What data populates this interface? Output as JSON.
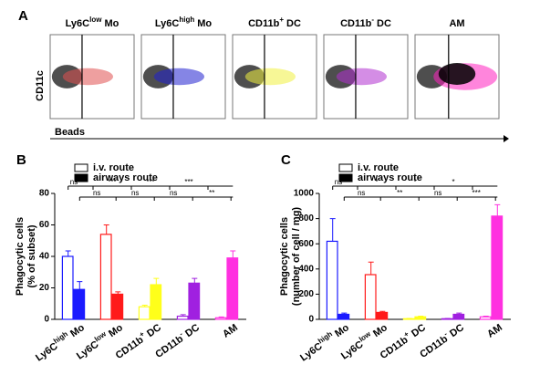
{
  "chart_data": [
    {
      "type": "flow",
      "panel": "A",
      "titles": [
        [
          "Ly6C",
          "low",
          "Mo"
        ],
        [
          "Ly6C",
          "high",
          "Mo"
        ],
        [
          "CD11b",
          "+",
          "DC"
        ],
        [
          "CD11b",
          "-",
          "DC"
        ],
        [
          "AM"
        ]
      ],
      "colors": [
        "#e05050",
        "#2020d0",
        "#f0f040",
        "#b030d0",
        "#ff20c0"
      ],
      "y_label": "CD11c",
      "x_label": "Beads"
    },
    {
      "type": "bar",
      "panel": "B",
      "categories": [
        [
          "Ly6C",
          "high",
          "Mo"
        ],
        [
          "Ly6C",
          "low",
          "Mo"
        ],
        [
          "CD11b",
          "+",
          "DC"
        ],
        [
          "CD11b",
          "-",
          "DC"
        ],
        [
          "AM"
        ]
      ],
      "colors": [
        "#1a1aff",
        "#ff1a1a",
        "#ffff1a",
        "#a020e0",
        "#ff30e0"
      ],
      "series": [
        {
          "name": "i.v. route",
          "color": "#ffffff",
          "values": [
            40,
            54,
            8,
            2,
            1
          ],
          "errors": [
            3.5,
            6,
            1,
            1,
            0.5
          ]
        },
        {
          "name": "airways route",
          "color": "#000000",
          "values": [
            19,
            16,
            22,
            23,
            39
          ],
          "errors": [
            5,
            1.5,
            4,
            3,
            4.5
          ]
        }
      ],
      "y_label": [
        "Phagocytic cells",
        "(% of subset)"
      ],
      "ylim": [
        0,
        80
      ],
      "yticks": [
        0,
        20,
        40,
        60,
        80
      ],
      "significance": [
        [
          "ns",
          "***",
          "***",
          "***"
        ],
        [
          "ns",
          "ns",
          "ns",
          "**"
        ]
      ]
    },
    {
      "type": "bar",
      "panel": "C",
      "categories": [
        [
          "Ly6C",
          "high",
          "Mo"
        ],
        [
          "Ly6C",
          "low",
          "Mo"
        ],
        [
          "CD11b",
          "+",
          "DC"
        ],
        [
          "CD11b",
          "-",
          "DC"
        ],
        [
          "AM"
        ]
      ],
      "colors": [
        "#1a1aff",
        "#ff1a1a",
        "#ffff1a",
        "#a020e0",
        "#ff30e0"
      ],
      "series": [
        {
          "name": "i.v. route",
          "color": "#ffffff",
          "values": [
            620,
            355,
            5,
            5,
            20
          ],
          "errors": [
            180,
            100,
            2,
            2,
            5
          ]
        },
        {
          "name": "airways route",
          "color": "#000000",
          "values": [
            40,
            55,
            20,
            40,
            820
          ],
          "errors": [
            10,
            8,
            5,
            10,
            90
          ]
        }
      ],
      "y_label": [
        "Phagocytic cells",
        "(number of cell / mg)"
      ],
      "ylim": [
        0,
        1000
      ],
      "yticks": [
        0,
        200,
        400,
        600,
        800,
        1000
      ],
      "significance": [
        [
          "ns",
          "*",
          "*",
          "*"
        ],
        [
          "ns",
          "**",
          "ns",
          "***"
        ]
      ]
    }
  ]
}
